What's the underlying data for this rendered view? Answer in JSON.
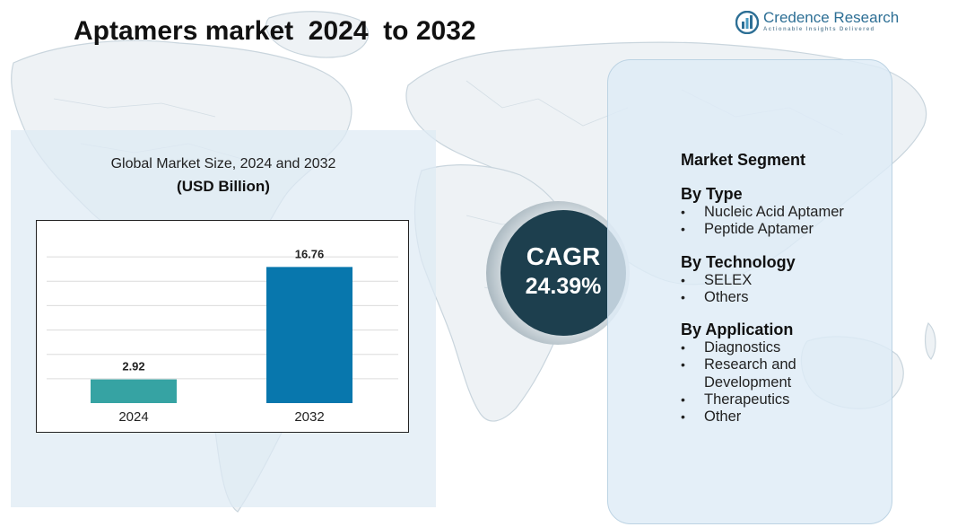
{
  "page": {
    "title": "Aptamers market  2024  to 2032"
  },
  "brand": {
    "name": "Credence Research",
    "tagline": "Actionable Insights Delivered",
    "logo_icon": "credence-logo-icon",
    "color": "#2d6f95"
  },
  "chart_heading": {
    "title": "Global Market Size, 2024 and 2032",
    "unit": "(USD Billion)"
  },
  "chart_data": {
    "type": "bar",
    "title": "Global Market Size, 2024 and 2032",
    "subtitle": "(USD Billion)",
    "categories": [
      "2024",
      "2032"
    ],
    "values": [
      2.92,
      16.76
    ],
    "data_labels": [
      "2.92",
      "16.76"
    ],
    "colors": [
      "#36a3a3",
      "#0877ad"
    ],
    "ylim": [
      0,
      21
    ],
    "grid": true,
    "legend": "none"
  },
  "cagr": {
    "label": "CAGR",
    "value": "24.39%",
    "circle_color": "#1d3f4e"
  },
  "segments": {
    "heading": "Market Segment",
    "groups": [
      {
        "title": "By Type",
        "items": [
          "Nucleic Acid Aptamer",
          "Peptide Aptamer"
        ]
      },
      {
        "title": "By Technology",
        "items": [
          "SELEX",
          "Others"
        ]
      },
      {
        "title": "By Application",
        "items": [
          "Diagnostics",
          "Research and Development",
          "Therapeutics",
          "Other"
        ]
      }
    ]
  },
  "background": {
    "map_icon": "world-map-background",
    "panel_color": "#deeaf4"
  }
}
